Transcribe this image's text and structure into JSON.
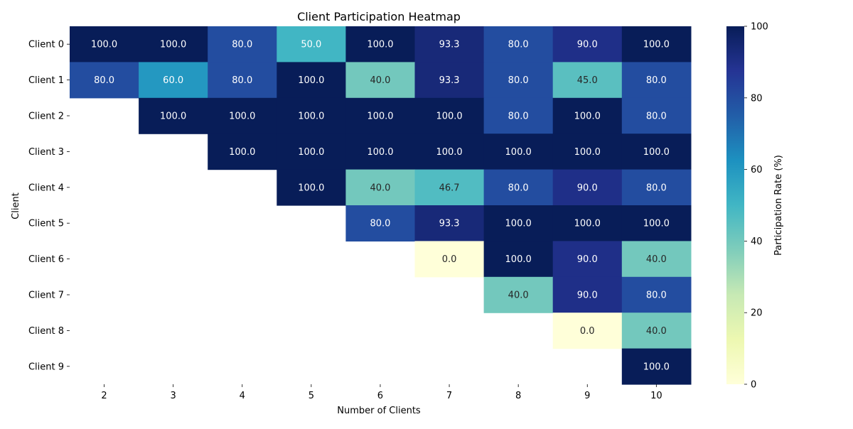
{
  "chart_data": {
    "type": "heatmap",
    "title": "Client Participation Heatmap",
    "xlabel": "Number of Clients",
    "ylabel": "Client",
    "x_categories": [
      "2",
      "3",
      "4",
      "5",
      "6",
      "7",
      "8",
      "9",
      "10"
    ],
    "y_categories": [
      "Client 0",
      "Client 1",
      "Client 2",
      "Client 3",
      "Client 4",
      "Client 5",
      "Client 6",
      "Client 7",
      "Client 8",
      "Client 9"
    ],
    "values": [
      [
        100.0,
        100.0,
        80.0,
        50.0,
        100.0,
        93.3,
        80.0,
        90.0,
        100.0
      ],
      [
        80.0,
        60.0,
        80.0,
        100.0,
        40.0,
        93.3,
        80.0,
        45.0,
        80.0
      ],
      [
        null,
        100.0,
        100.0,
        100.0,
        100.0,
        100.0,
        80.0,
        100.0,
        80.0
      ],
      [
        null,
        null,
        100.0,
        100.0,
        100.0,
        100.0,
        100.0,
        100.0,
        100.0
      ],
      [
        null,
        null,
        null,
        100.0,
        40.0,
        46.7,
        80.0,
        90.0,
        80.0
      ],
      [
        null,
        null,
        null,
        null,
        80.0,
        93.3,
        100.0,
        100.0,
        100.0
      ],
      [
        null,
        null,
        null,
        null,
        null,
        0.0,
        100.0,
        90.0,
        40.0
      ],
      [
        null,
        null,
        null,
        null,
        null,
        null,
        40.0,
        90.0,
        80.0
      ],
      [
        null,
        null,
        null,
        null,
        null,
        null,
        null,
        0.0,
        40.0
      ],
      [
        null,
        null,
        null,
        null,
        null,
        null,
        null,
        null,
        100.0
      ]
    ],
    "colorbar": {
      "label": "Participation Rate (%)",
      "range": [
        0,
        100
      ],
      "ticks": [
        "0",
        "20",
        "40",
        "60",
        "80",
        "100"
      ],
      "colormap": "YlGnBu"
    },
    "value_format": "one-decimal"
  }
}
